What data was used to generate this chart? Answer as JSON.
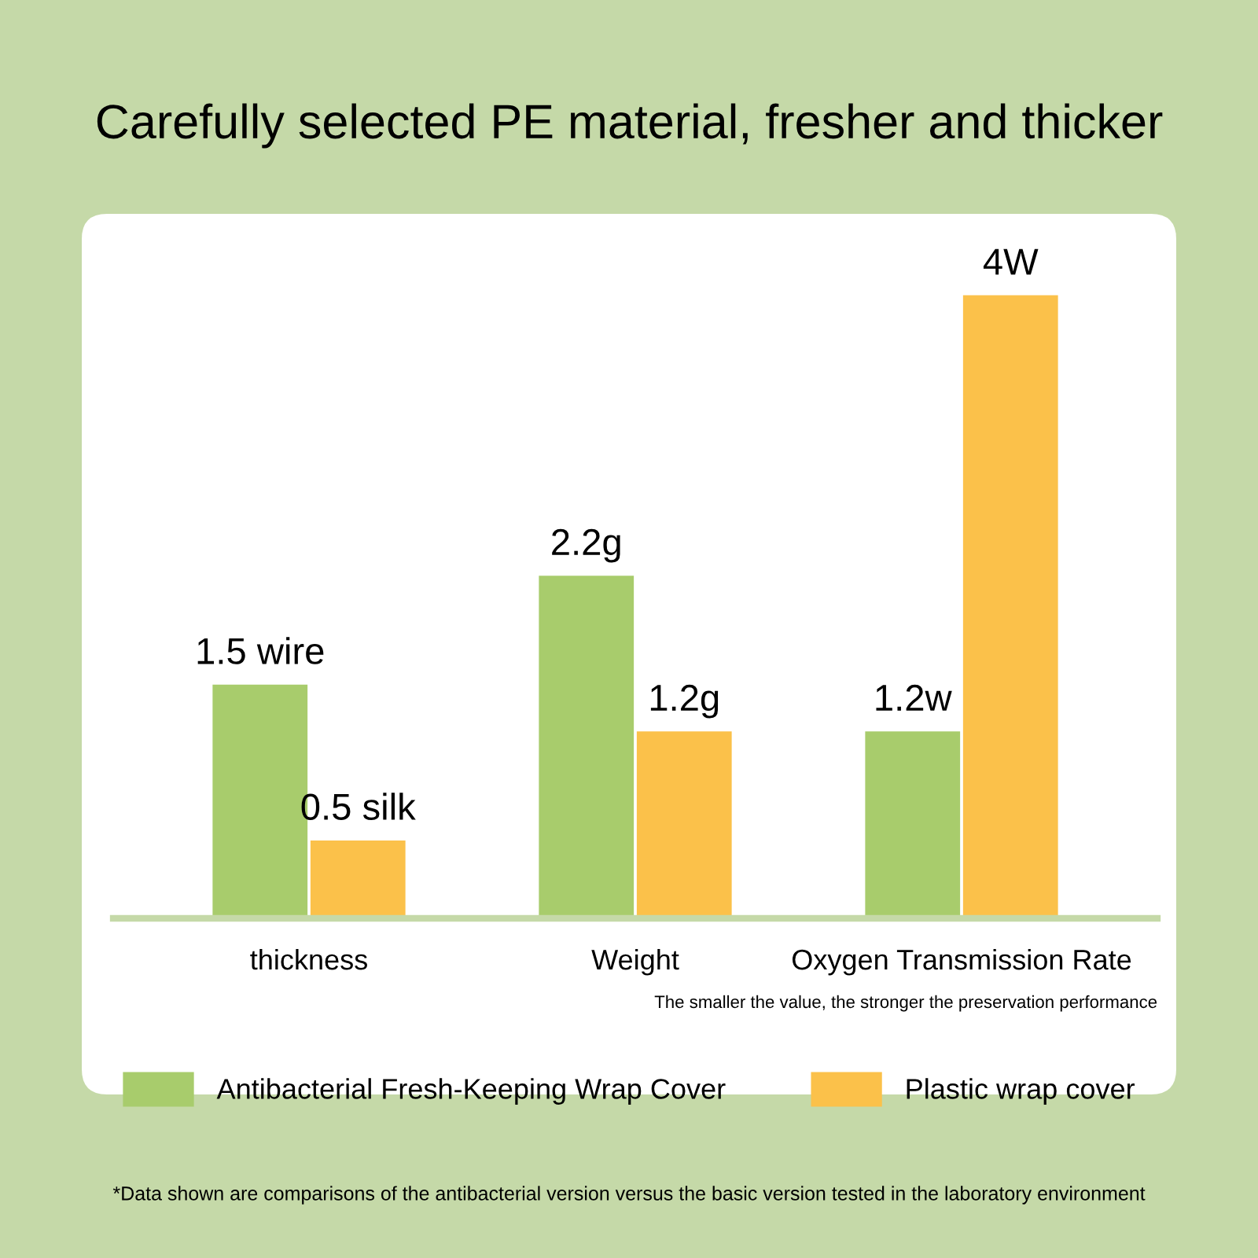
{
  "chart_data": {
    "type": "bar",
    "title": "Carefully selected PE material, fresher and thicker",
    "categories": [
      "thickness",
      "Weight",
      "Oxygen Transmission Rate"
    ],
    "tick_labels": "x",
    "series": [
      {
        "name": "Antibacterial Fresh-Keeping Wrap Cover",
        "color": "#a8cc6c",
        "values": [
          1.5,
          2.2,
          1.2
        ],
        "value_labels": [
          "1.5 wire",
          "2.2g",
          "1.2w"
        ]
      },
      {
        "name": "Plastic wrap cover",
        "color": "#fbc14a",
        "values": [
          0.5,
          1.2,
          4
        ],
        "value_labels": [
          "0.5 silk",
          "1.2g",
          "4W"
        ]
      }
    ],
    "annotations": [
      "The smaller the value, the stronger the preservation performance",
      "*Data shown are comparisons of the antibacterial version versus the basic version tested in the laboratory environment"
    ],
    "legend": "bottom"
  }
}
